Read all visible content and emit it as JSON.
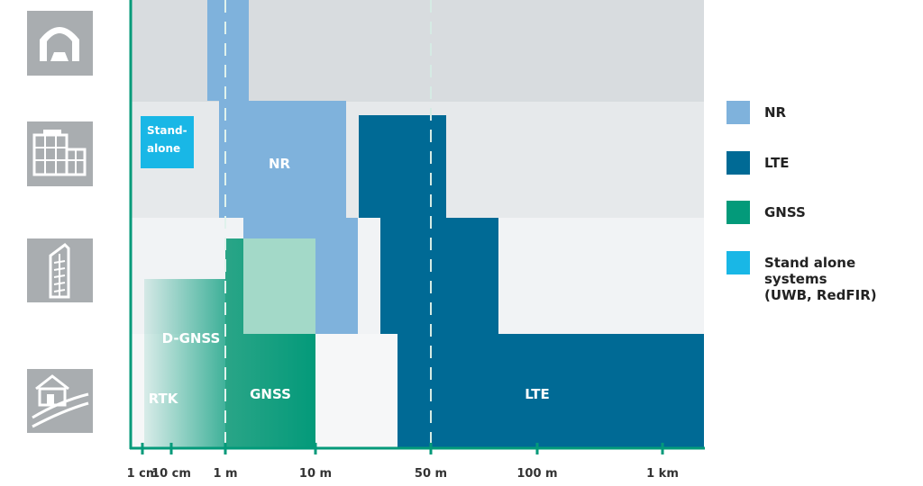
{
  "chart_data": {
    "type": "area",
    "x_scale": "log",
    "x_ticks": [
      "1 cm",
      "10 cm",
      "1 m",
      "10 m",
      "50 m",
      "100 m",
      "1 km"
    ],
    "y_categories": [
      {
        "icon": "tunnel-icon"
      },
      {
        "icon": "office-building-icon"
      },
      {
        "icon": "high-rise-icon"
      },
      {
        "icon": "rural-house-icon"
      }
    ],
    "regions": [
      {
        "name": "NR",
        "label": "NR"
      },
      {
        "name": "LTE",
        "label": "LTE"
      },
      {
        "name": "GNSS",
        "label": "GNSS"
      },
      {
        "name": "D-GNSS",
        "label": "D-GNSS"
      },
      {
        "name": "RTK",
        "label": "RTK"
      },
      {
        "name": "Stand alone systems",
        "label": "Stand-\nalone"
      }
    ],
    "legend_placement": "right",
    "legend": [
      {
        "label": "NR",
        "color": "#7fb2dc"
      },
      {
        "label": "LTE",
        "color": "#006a95"
      },
      {
        "label": "GNSS",
        "color": "#039a7a"
      },
      {
        "label": "Stand alone systems (UWB, RedFIR)",
        "lines": [
          "Stand alone",
          "systems",
          "(UWB, RedFIR)"
        ],
        "color": "#19b7e6"
      }
    ],
    "colors": {
      "nr": "#7fb2dc",
      "lte": "#006a95",
      "gnss": "#039a7a",
      "gnss_light": "#a3d9c8",
      "standalone": "#19b7e6",
      "axis": "#039a7a",
      "icon_bg": "#a9adb0",
      "band_dark": "#d8dcdf",
      "band_mid": "#e6e9eb",
      "band_light": "#f1f3f5"
    }
  }
}
